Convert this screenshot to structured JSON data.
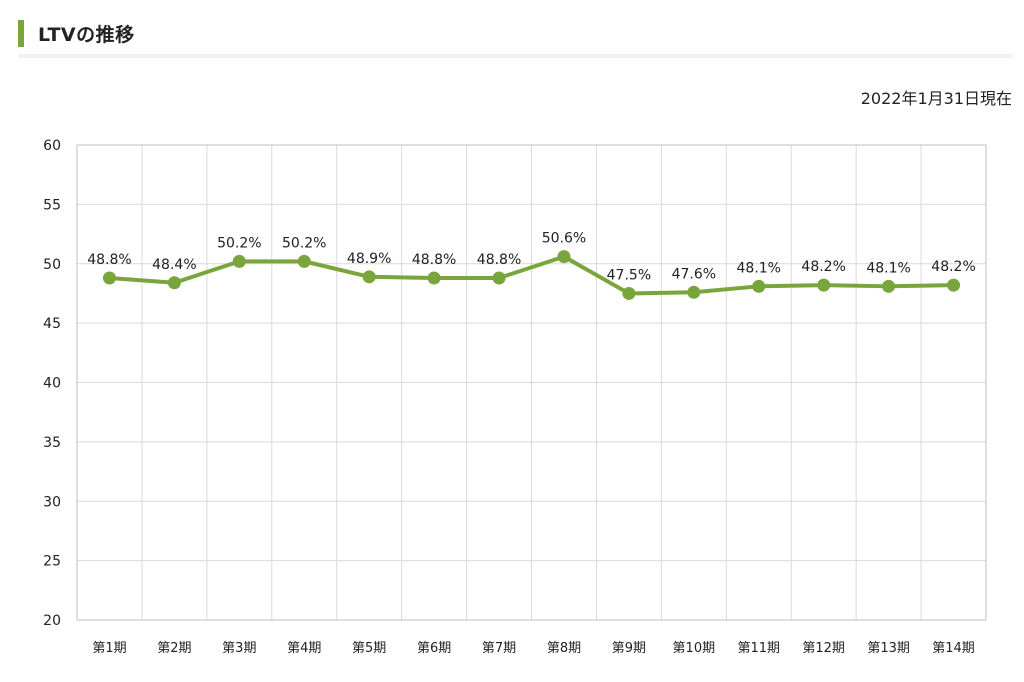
{
  "header": {
    "title": "LTVの推移",
    "as_of": "2022年1月31日現在"
  },
  "colors": {
    "accent": "#7aa43c",
    "line": "#7aa43c",
    "grid": "#d9d9d9",
    "frame": "#bfbfbf"
  },
  "chart_data": {
    "type": "line",
    "title": "",
    "xlabel": "",
    "ylabel": "",
    "ylim": [
      20,
      60
    ],
    "yticks": [
      20,
      25,
      30,
      35,
      40,
      45,
      50,
      55,
      60
    ],
    "grid": true,
    "legend": "none",
    "categories": [
      "第1期",
      "第2期",
      "第3期",
      "第4期",
      "第5期",
      "第6期",
      "第7期",
      "第8期",
      "第9期",
      "第10期",
      "第11期",
      "第12期",
      "第13期",
      "第14期"
    ],
    "series": [
      {
        "values": [
          48.8,
          48.4,
          50.2,
          50.2,
          48.9,
          48.8,
          48.8,
          50.6,
          47.5,
          47.6,
          48.1,
          48.2,
          48.1,
          48.2
        ],
        "labels": [
          "48.8%",
          "48.4%",
          "50.2%",
          "50.2%",
          "48.9%",
          "48.8%",
          "48.8%",
          "50.6%",
          "47.5%",
          "47.6%",
          "48.1%",
          "48.2%",
          "48.1%",
          "48.2%"
        ]
      }
    ]
  }
}
